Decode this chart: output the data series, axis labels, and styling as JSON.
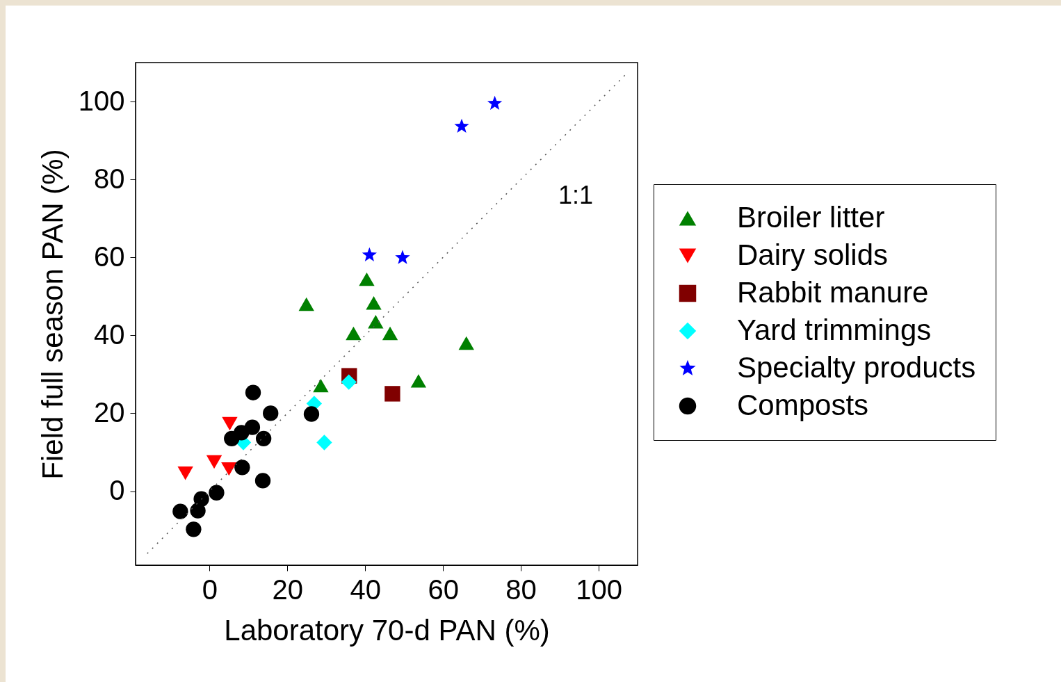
{
  "chart_data": {
    "type": "scatter",
    "xlabel": "Laboratory 70-d  PAN (%)",
    "ylabel": "Field full season PAN (%)",
    "xlim": [
      -19,
      110
    ],
    "ylim": [
      -19,
      110
    ],
    "xticks": [
      0,
      20,
      40,
      60,
      80,
      100
    ],
    "yticks": [
      0,
      20,
      40,
      60,
      80,
      100
    ],
    "grid": false,
    "legend": "right",
    "annotations": [
      "1:1"
    ],
    "series": [
      {
        "name": "Broiler litter",
        "color": "#008000",
        "marker": "triangle",
        "x": [
          24.9,
          40.4,
          42.2,
          42.7,
          37.0,
          46.4,
          66.0,
          28.6,
          53.7
        ],
        "values": [
          48.0,
          54.4,
          48.3,
          43.5,
          40.5,
          40.5,
          38.0,
          27.1,
          28.3
        ]
      },
      {
        "name": "Dairy solids",
        "color": "#ff0000",
        "marker": "triangle-down",
        "x": [
          -6.2,
          1.2,
          5.0,
          5.2
        ],
        "values": [
          4.6,
          7.5,
          5.7,
          17.3
        ]
      },
      {
        "name": "Rabbit manure",
        "color": "#800000",
        "marker": "square",
        "x": [
          35.9,
          47.0
        ],
        "values": [
          29.6,
          25.0
        ]
      },
      {
        "name": "Yard trimmings",
        "color": "#00ffff",
        "marker": "diamond",
        "x": [
          8.7,
          26.9,
          35.8,
          29.5
        ],
        "values": [
          12.5,
          22.5,
          28.0,
          12.5
        ]
      },
      {
        "name": "Specialty products",
        "color": "#0000ff",
        "marker": "star",
        "x": [
          41.1,
          49.6,
          64.8,
          73.3
        ],
        "values": [
          60.6,
          59.9,
          93.6,
          99.5
        ]
      },
      {
        "name": "Composts",
        "color": "#000000",
        "marker": "circle",
        "x": [
          11.2,
          15.7,
          26.2,
          11.0,
          8.2,
          5.7,
          13.9,
          8.4,
          13.7,
          1.8,
          -2.1,
          -7.5,
          -3.0,
          -4.1
        ],
        "values": [
          25.3,
          20.0,
          19.8,
          16.4,
          15.0,
          13.5,
          13.5,
          6.1,
          2.7,
          -0.4,
          -2.0,
          -5.2,
          -5.0,
          -9.8
        ]
      },
      {
        "type": "line",
        "color": "#555555",
        "line_style": "dotted",
        "x": [
          -16,
          107
        ],
        "values": [
          -16,
          107
        ]
      }
    ]
  }
}
